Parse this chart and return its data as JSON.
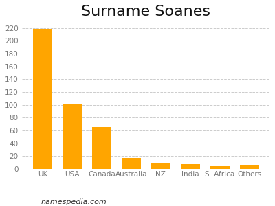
{
  "title": "Surname Soanes",
  "categories": [
    "UK",
    "USA",
    "Canada",
    "Australia",
    "NZ",
    "India",
    "S. Africa",
    "Others"
  ],
  "values": [
    218,
    102,
    65,
    17,
    9,
    8,
    4,
    5
  ],
  "bar_color": "#FFA500",
  "ylim": [
    0,
    230
  ],
  "yticks": [
    0,
    20,
    40,
    60,
    80,
    100,
    120,
    140,
    160,
    180,
    200,
    220
  ],
  "background_color": "#ffffff",
  "grid_color": "#cccccc",
  "title_fontsize": 16,
  "tick_fontsize": 7.5,
  "watermark": "namespedia.com",
  "watermark_fontsize": 8
}
